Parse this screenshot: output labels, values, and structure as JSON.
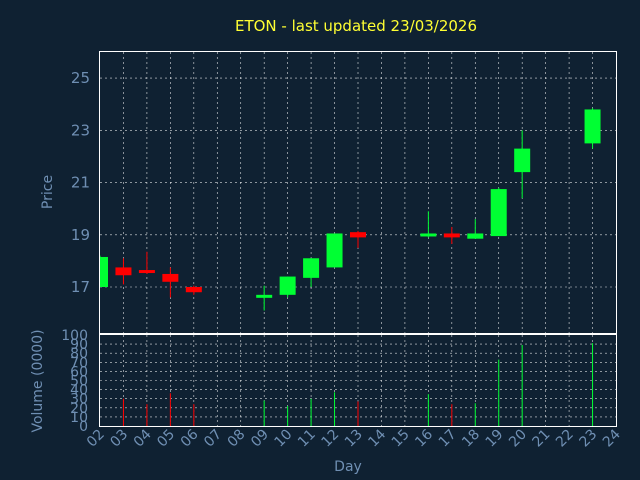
{
  "chart_data": {
    "type": "candlestick",
    "title": "ETON - last updated 23/03/2026",
    "xlabel": "Day",
    "price_axis": {
      "label": "Price",
      "ylim": [
        15.2,
        26.0
      ],
      "ticks": [
        17,
        19,
        21,
        23,
        25
      ]
    },
    "volume_axis": {
      "label": "Volume (0000)",
      "ylim": [
        0,
        100
      ],
      "ticks": [
        0,
        10,
        20,
        30,
        40,
        50,
        60,
        70,
        80,
        90,
        100
      ]
    },
    "x_ticks": [
      "02",
      "03",
      "04",
      "05",
      "06",
      "07",
      "08",
      "09",
      "10",
      "11",
      "12",
      "13",
      "14",
      "15",
      "16",
      "17",
      "18",
      "19",
      "20",
      "21",
      "22",
      "23",
      "24"
    ],
    "candles": [
      {
        "day": "02",
        "open": 17.0,
        "high": 18.2,
        "low": 17.0,
        "close": 18.15,
        "volume": 0
      },
      {
        "day": "03",
        "open": 17.75,
        "high": 18.1,
        "low": 17.1,
        "close": 17.45,
        "volume": 30
      },
      {
        "day": "04",
        "open": 17.65,
        "high": 18.35,
        "low": 17.5,
        "close": 17.55,
        "volume": 24
      },
      {
        "day": "05",
        "open": 17.5,
        "high": 17.75,
        "low": 16.6,
        "close": 17.2,
        "volume": 36
      },
      {
        "day": "06",
        "open": 17.0,
        "high": 17.05,
        "low": 16.7,
        "close": 16.8,
        "volume": 24
      },
      {
        "day": "09",
        "open": 16.6,
        "high": 17.05,
        "low": 16.1,
        "close": 16.7,
        "volume": 28
      },
      {
        "day": "10",
        "open": 16.7,
        "high": 17.4,
        "low": 16.6,
        "close": 17.4,
        "volume": 22
      },
      {
        "day": "11",
        "open": 17.35,
        "high": 18.1,
        "low": 17.0,
        "close": 18.1,
        "volume": 30
      },
      {
        "day": "12",
        "open": 17.75,
        "high": 19.05,
        "low": 17.75,
        "close": 19.05,
        "volume": 37
      },
      {
        "day": "13",
        "open": 19.1,
        "high": 19.15,
        "low": 18.5,
        "close": 18.9,
        "volume": 27
      },
      {
        "day": "16",
        "open": 18.95,
        "high": 19.9,
        "low": 18.9,
        "close": 19.05,
        "volume": 35
      },
      {
        "day": "17",
        "open": 19.05,
        "high": 19.3,
        "low": 18.65,
        "close": 18.9,
        "volume": 24
      },
      {
        "day": "18",
        "open": 18.85,
        "high": 19.6,
        "low": 18.85,
        "close": 19.05,
        "volume": 25
      },
      {
        "day": "19",
        "open": 18.95,
        "high": 20.8,
        "low": 18.95,
        "close": 20.75,
        "volume": 73
      },
      {
        "day": "20",
        "open": 21.4,
        "high": 23.0,
        "low": 20.4,
        "close": 22.3,
        "volume": 89
      },
      {
        "day": "23",
        "open": 22.5,
        "high": 23.85,
        "low": 22.3,
        "close": 23.8,
        "volume": 91
      }
    ],
    "colors": {
      "up": "#00ff33",
      "down": "#ff0000",
      "background": "#0f2132",
      "axis_text": "#6f8fb3",
      "title": "#ffff33",
      "frame": "#ffffff"
    },
    "grid": true
  }
}
